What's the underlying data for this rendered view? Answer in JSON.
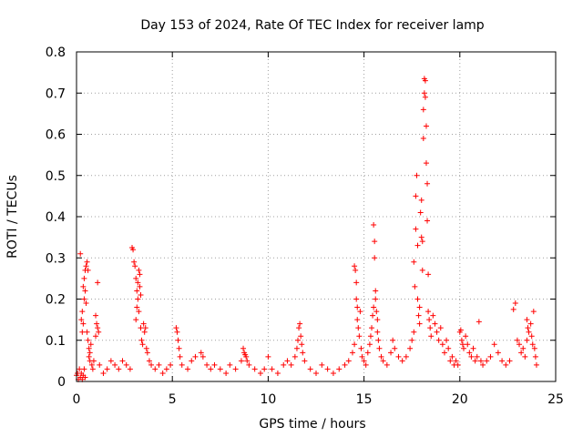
{
  "chart_data": {
    "type": "scatter",
    "title": "Day 153 of 2024, Rate Of TEC Index for receiver lamp",
    "xlabel": "GPS time / hours",
    "ylabel": "ROTI / TECUs",
    "xlim": [
      0,
      25
    ],
    "ylim": [
      0,
      0.8
    ],
    "xticks": [
      "0",
      "5",
      "10",
      "15",
      "20",
      "25"
    ],
    "yticks": [
      "0",
      "0.1",
      "0.2",
      "0.3",
      "0.4",
      "0.5",
      "0.6",
      "0.7",
      "0.8"
    ],
    "grid": true,
    "marker": "plus",
    "color": "#ff0000",
    "series": [
      {
        "points": [
          [
            0.0,
            0.015
          ],
          [
            0.05,
            0.02
          ],
          [
            0.1,
            0.005
          ],
          [
            0.15,
            0.03
          ],
          [
            0.2,
            0.01
          ],
          [
            0.25,
            0.02
          ],
          [
            0.3,
            0.005
          ],
          [
            0.35,
            0.015
          ],
          [
            0.4,
            0.03
          ],
          [
            0.45,
            0.01
          ],
          [
            0.2,
            0.31
          ],
          [
            0.25,
            0.15
          ],
          [
            0.3,
            0.12
          ],
          [
            0.3,
            0.17
          ],
          [
            0.35,
            0.14
          ],
          [
            0.35,
            0.23
          ],
          [
            0.4,
            0.2
          ],
          [
            0.4,
            0.25
          ],
          [
            0.45,
            0.27
          ],
          [
            0.45,
            0.22
          ],
          [
            0.5,
            0.28
          ],
          [
            0.5,
            0.19
          ],
          [
            0.55,
            0.29
          ],
          [
            0.55,
            0.12
          ],
          [
            0.6,
            0.27
          ],
          [
            0.6,
            0.1
          ],
          [
            0.65,
            0.08
          ],
          [
            0.65,
            0.06
          ],
          [
            0.7,
            0.05
          ],
          [
            0.75,
            0.09
          ],
          [
            0.7,
            0.07
          ],
          [
            0.8,
            0.04
          ],
          [
            0.85,
            0.03
          ],
          [
            0.9,
            0.05
          ],
          [
            1.0,
            0.11
          ],
          [
            1.0,
            0.16
          ],
          [
            1.05,
            0.14
          ],
          [
            1.1,
            0.13
          ],
          [
            1.1,
            0.24
          ],
          [
            1.15,
            0.12
          ],
          [
            1.2,
            0.04
          ],
          [
            1.4,
            0.02
          ],
          [
            1.6,
            0.03
          ],
          [
            1.8,
            0.05
          ],
          [
            2.0,
            0.04
          ],
          [
            2.2,
            0.03
          ],
          [
            2.4,
            0.05
          ],
          [
            2.6,
            0.04
          ],
          [
            2.8,
            0.03
          ],
          [
            2.9,
            0.325
          ],
          [
            2.95,
            0.32
          ],
          [
            3.0,
            0.29
          ],
          [
            3.05,
            0.28
          ],
          [
            3.1,
            0.25
          ],
          [
            3.1,
            0.15
          ],
          [
            3.15,
            0.18
          ],
          [
            3.15,
            0.22
          ],
          [
            3.2,
            0.24
          ],
          [
            3.2,
            0.2
          ],
          [
            3.25,
            0.27
          ],
          [
            3.25,
            0.17
          ],
          [
            3.3,
            0.26
          ],
          [
            3.3,
            0.23
          ],
          [
            3.35,
            0.21
          ],
          [
            3.35,
            0.13
          ],
          [
            3.4,
            0.1
          ],
          [
            3.45,
            0.09
          ],
          [
            3.5,
            0.14
          ],
          [
            3.55,
            0.12
          ],
          [
            3.6,
            0.13
          ],
          [
            3.65,
            0.08
          ],
          [
            3.7,
            0.07
          ],
          [
            3.8,
            0.05
          ],
          [
            3.9,
            0.04
          ],
          [
            4.1,
            0.03
          ],
          [
            4.3,
            0.04
          ],
          [
            4.5,
            0.02
          ],
          [
            4.7,
            0.03
          ],
          [
            4.9,
            0.04
          ],
          [
            5.2,
            0.13
          ],
          [
            5.25,
            0.12
          ],
          [
            5.3,
            0.1
          ],
          [
            5.35,
            0.08
          ],
          [
            5.4,
            0.06
          ],
          [
            5.5,
            0.04
          ],
          [
            5.8,
            0.03
          ],
          [
            6.0,
            0.05
          ],
          [
            6.2,
            0.06
          ],
          [
            6.5,
            0.07
          ],
          [
            6.6,
            0.06
          ],
          [
            6.8,
            0.04
          ],
          [
            7.0,
            0.03
          ],
          [
            7.2,
            0.04
          ],
          [
            7.5,
            0.03
          ],
          [
            7.8,
            0.02
          ],
          [
            8.0,
            0.04
          ],
          [
            8.3,
            0.03
          ],
          [
            8.6,
            0.05
          ],
          [
            8.7,
            0.08
          ],
          [
            8.75,
            0.07
          ],
          [
            8.8,
            0.065
          ],
          [
            8.85,
            0.06
          ],
          [
            8.9,
            0.05
          ],
          [
            9.0,
            0.04
          ],
          [
            9.3,
            0.03
          ],
          [
            9.6,
            0.02
          ],
          [
            9.8,
            0.03
          ],
          [
            10.0,
            0.06
          ],
          [
            10.2,
            0.03
          ],
          [
            10.5,
            0.02
          ],
          [
            10.8,
            0.04
          ],
          [
            11.0,
            0.05
          ],
          [
            11.2,
            0.04
          ],
          [
            11.4,
            0.06
          ],
          [
            11.5,
            0.08
          ],
          [
            11.55,
            0.1
          ],
          [
            11.6,
            0.13
          ],
          [
            11.65,
            0.14
          ],
          [
            11.7,
            0.11
          ],
          [
            11.75,
            0.09
          ],
          [
            11.8,
            0.07
          ],
          [
            11.9,
            0.05
          ],
          [
            12.2,
            0.03
          ],
          [
            12.5,
            0.02
          ],
          [
            12.8,
            0.04
          ],
          [
            13.1,
            0.03
          ],
          [
            13.4,
            0.02
          ],
          [
            13.7,
            0.03
          ],
          [
            14.0,
            0.04
          ],
          [
            14.2,
            0.05
          ],
          [
            14.4,
            0.07
          ],
          [
            14.5,
            0.09
          ],
          [
            14.5,
            0.28
          ],
          [
            14.55,
            0.27
          ],
          [
            14.6,
            0.24
          ],
          [
            14.6,
            0.2
          ],
          [
            14.65,
            0.18
          ],
          [
            14.65,
            0.15
          ],
          [
            14.7,
            0.13
          ],
          [
            14.75,
            0.11
          ],
          [
            14.8,
            0.17
          ],
          [
            14.85,
            0.08
          ],
          [
            14.9,
            0.06
          ],
          [
            15.0,
            0.05
          ],
          [
            15.1,
            0.04
          ],
          [
            15.2,
            0.07
          ],
          [
            15.3,
            0.09
          ],
          [
            15.35,
            0.11
          ],
          [
            15.4,
            0.13
          ],
          [
            15.45,
            0.16
          ],
          [
            15.5,
            0.18
          ],
          [
            15.5,
            0.38
          ],
          [
            15.55,
            0.34
          ],
          [
            15.55,
            0.3
          ],
          [
            15.6,
            0.22
          ],
          [
            15.6,
            0.2
          ],
          [
            15.65,
            0.17
          ],
          [
            15.7,
            0.15
          ],
          [
            15.7,
            0.12
          ],
          [
            15.75,
            0.1
          ],
          [
            15.8,
            0.08
          ],
          [
            15.9,
            0.06
          ],
          [
            16.0,
            0.05
          ],
          [
            16.2,
            0.04
          ],
          [
            16.4,
            0.07
          ],
          [
            16.5,
            0.1
          ],
          [
            16.6,
            0.08
          ],
          [
            16.8,
            0.06
          ],
          [
            17.0,
            0.05
          ],
          [
            17.2,
            0.06
          ],
          [
            17.4,
            0.08
          ],
          [
            17.5,
            0.1
          ],
          [
            17.6,
            0.12
          ],
          [
            17.6,
            0.29
          ],
          [
            17.65,
            0.23
          ],
          [
            17.7,
            0.45
          ],
          [
            17.7,
            0.37
          ],
          [
            17.75,
            0.5
          ],
          [
            17.8,
            0.33
          ],
          [
            17.8,
            0.2
          ],
          [
            17.85,
            0.16
          ],
          [
            17.9,
            0.18
          ],
          [
            17.9,
            0.14
          ],
          [
            17.95,
            0.41
          ],
          [
            18.0,
            0.44
          ],
          [
            18.0,
            0.35
          ],
          [
            18.05,
            0.34
          ],
          [
            18.05,
            0.27
          ],
          [
            18.1,
            0.59
          ],
          [
            18.1,
            0.66
          ],
          [
            18.15,
            0.7
          ],
          [
            18.15,
            0.735
          ],
          [
            18.2,
            0.73
          ],
          [
            18.2,
            0.69
          ],
          [
            18.25,
            0.62
          ],
          [
            18.25,
            0.53
          ],
          [
            18.3,
            0.48
          ],
          [
            18.3,
            0.39
          ],
          [
            18.35,
            0.26
          ],
          [
            18.35,
            0.17
          ],
          [
            18.4,
            0.15
          ],
          [
            18.45,
            0.13
          ],
          [
            18.5,
            0.11
          ],
          [
            18.6,
            0.16
          ],
          [
            18.7,
            0.14
          ],
          [
            18.8,
            0.12
          ],
          [
            18.9,
            0.1
          ],
          [
            19.0,
            0.13
          ],
          [
            19.1,
            0.09
          ],
          [
            19.2,
            0.07
          ],
          [
            19.3,
            0.1
          ],
          [
            19.4,
            0.08
          ],
          [
            19.5,
            0.05
          ],
          [
            19.6,
            0.06
          ],
          [
            19.7,
            0.04
          ],
          [
            19.8,
            0.05
          ],
          [
            19.9,
            0.04
          ],
          [
            20.0,
            0.12
          ],
          [
            20.05,
            0.125
          ],
          [
            20.1,
            0.1
          ],
          [
            20.15,
            0.09
          ],
          [
            20.2,
            0.08
          ],
          [
            20.3,
            0.11
          ],
          [
            20.4,
            0.09
          ],
          [
            20.5,
            0.07
          ],
          [
            20.6,
            0.06
          ],
          [
            20.7,
            0.08
          ],
          [
            20.8,
            0.05
          ],
          [
            20.9,
            0.06
          ],
          [
            21.0,
            0.145
          ],
          [
            21.1,
            0.05
          ],
          [
            21.2,
            0.04
          ],
          [
            21.4,
            0.05
          ],
          [
            21.6,
            0.06
          ],
          [
            21.8,
            0.09
          ],
          [
            22.0,
            0.07
          ],
          [
            22.2,
            0.05
          ],
          [
            22.4,
            0.04
          ],
          [
            22.6,
            0.05
          ],
          [
            22.8,
            0.175
          ],
          [
            22.9,
            0.19
          ],
          [
            23.0,
            0.1
          ],
          [
            23.1,
            0.09
          ],
          [
            23.2,
            0.07
          ],
          [
            23.3,
            0.08
          ],
          [
            23.4,
            0.06
          ],
          [
            23.5,
            0.1
          ],
          [
            23.5,
            0.15
          ],
          [
            23.55,
            0.13
          ],
          [
            23.6,
            0.12
          ],
          [
            23.7,
            0.14
          ],
          [
            23.75,
            0.11
          ],
          [
            23.8,
            0.09
          ],
          [
            23.85,
            0.17
          ],
          [
            23.9,
            0.08
          ],
          [
            23.95,
            0.06
          ],
          [
            24.0,
            0.04
          ]
        ]
      }
    ]
  }
}
